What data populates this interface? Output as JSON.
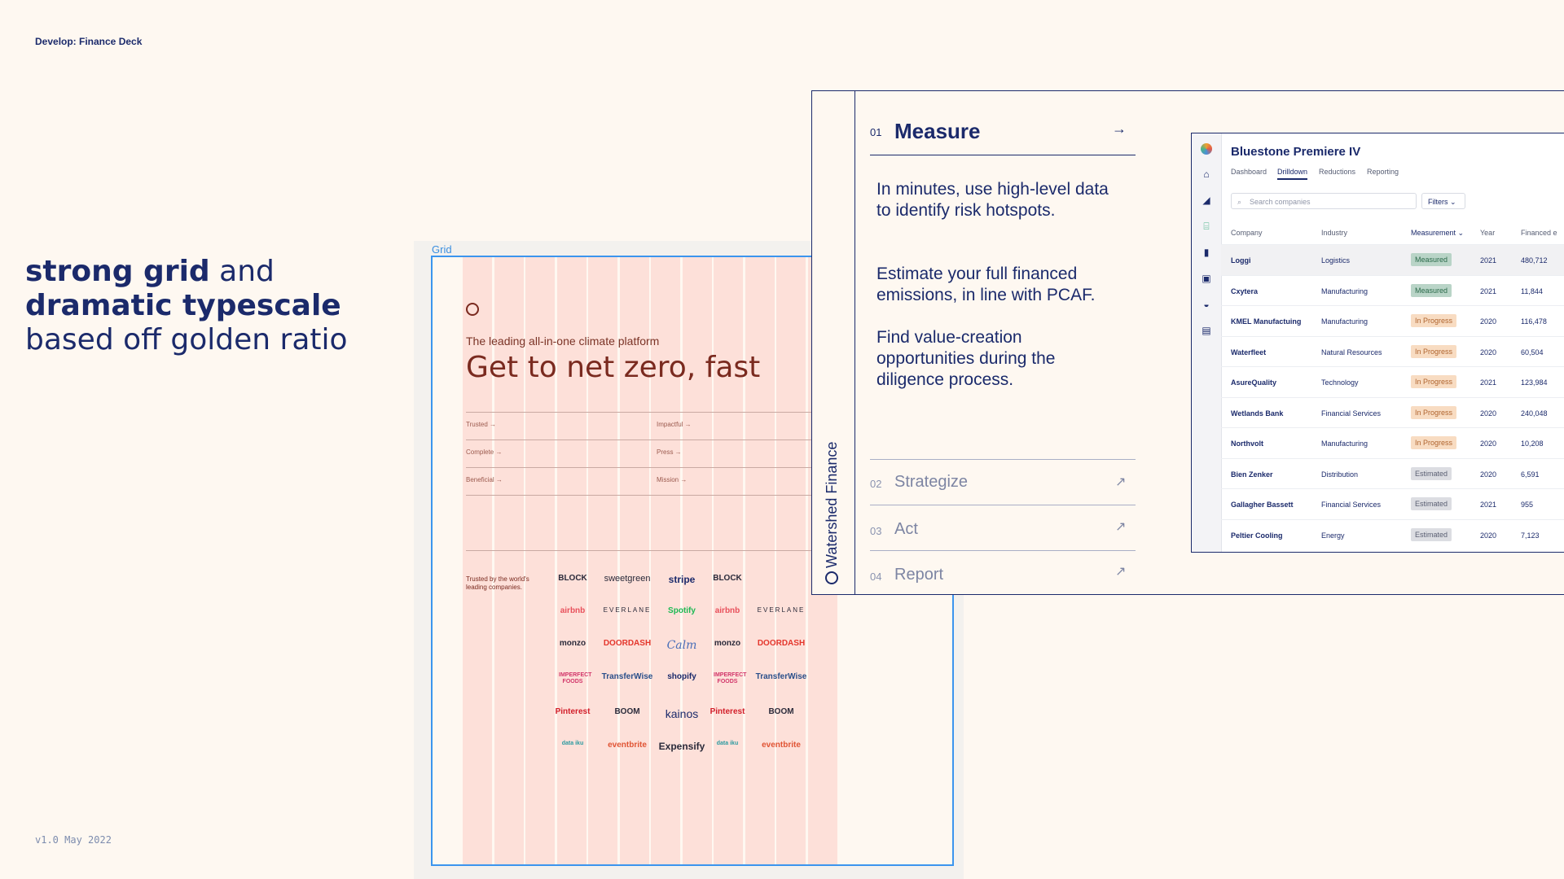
{
  "kicker": "Develop: Finance Deck",
  "version": "v1.0 May 2022",
  "headline": {
    "l1_bold": "strong grid",
    "l1_rest": " and",
    "l2_bold": "dramatic typescale",
    "l3": "based off golden ratio"
  },
  "grid_slide": {
    "label": "Grid",
    "subtitle": "The leading all-in-one climate platform",
    "title": "Get to net zero, fast",
    "links_left": [
      "Trusted →",
      "Complete →",
      "Beneficial →"
    ],
    "links_right": [
      "Impactful →",
      "Press →",
      "Mission →"
    ],
    "trusted_by": "Trusted by the world's leading companies.",
    "logos": [
      [
        "BLOCK",
        "sweetgreen",
        "stripe",
        "BLOCK"
      ],
      [
        "airbnb",
        "EVERLANE",
        "Spotify",
        "airbnb",
        "EVERLANE"
      ],
      [
        "monzo",
        "DOORDASH",
        "Calm",
        "monzo",
        "DOORDASH"
      ],
      [
        "IMPERFECT FOODS",
        "TransferWise",
        "shopify",
        "IMPERFECT FOODS",
        "TransferWise"
      ],
      [
        "Pinterest",
        "BOOM",
        "kainos",
        "Pinterest",
        "BOOM"
      ],
      [
        "data iku",
        "eventbrite",
        "Expensify",
        "data iku",
        "eventbrite"
      ]
    ]
  },
  "panel": {
    "brand": "Watershed Finance",
    "steps": [
      {
        "num": "01",
        "title": "Measure"
      },
      {
        "num": "02",
        "title": "Strategize"
      },
      {
        "num": "03",
        "title": "Act"
      },
      {
        "num": "04",
        "title": "Report"
      }
    ],
    "paragraphs": [
      "In minutes, use high-level data to identify risk hotspots.",
      "Estimate your full financed emissions, in line with PCAF.",
      "Find value-creation opportunities during the diligence process."
    ]
  },
  "app": {
    "title": "Bluestone Premiere IV",
    "tabs": [
      "Dashboard",
      "Drilldown",
      "Reductions",
      "Reporting"
    ],
    "active_tab": "Drilldown",
    "search_placeholder": "Search companies",
    "filters_label": "Filters",
    "columns": [
      "Company",
      "Industry",
      "Measurement",
      "Year",
      "Financed e"
    ],
    "rows": [
      {
        "company": "Loggi",
        "industry": "Logistics",
        "status": "Measured",
        "year": "2021",
        "value": "480,712"
      },
      {
        "company": "Cxytera",
        "industry": "Manufacturing",
        "status": "Measured",
        "year": "2021",
        "value": "11,844"
      },
      {
        "company": "KMEL Manufactuing",
        "industry": "Manufacturing",
        "status": "In Progress",
        "year": "2020",
        "value": "116,478"
      },
      {
        "company": "Waterfleet",
        "industry": "Natural Resources",
        "status": "In Progress",
        "year": "2020",
        "value": "60,504"
      },
      {
        "company": "AsureQuality",
        "industry": "Technology",
        "status": "In Progress",
        "year": "2021",
        "value": "123,984"
      },
      {
        "company": "Wetlands Bank",
        "industry": "Financial Services",
        "status": "In Progress",
        "year": "2020",
        "value": "240,048"
      },
      {
        "company": "Northvolt",
        "industry": "Manufacturing",
        "status": "In Progress",
        "year": "2020",
        "value": "10,208"
      },
      {
        "company": "Bien Zenker",
        "industry": "Distribution",
        "status": "Estimated",
        "year": "2020",
        "value": "6,591"
      },
      {
        "company": "Gallagher Bassett",
        "industry": "Financial Services",
        "status": "Estimated",
        "year": "2021",
        "value": "955"
      },
      {
        "company": "Peltier Cooling",
        "industry": "Energy",
        "status": "Estimated",
        "year": "2020",
        "value": "7,123"
      }
    ],
    "rail_icons": [
      "logo-icon",
      "home-icon",
      "chart-icon",
      "bank-icon",
      "bar-chart-icon",
      "terminal-icon",
      "basket-icon",
      "document-icon"
    ]
  },
  "colors": {
    "navy": "#1b2a6b",
    "cream": "#fef8f1",
    "grid_column": "#fde0d9",
    "grid_frame": "#3b95ee",
    "measured_bg": "#b9d4c7",
    "progress_bg": "#f8dcc2",
    "estimated_bg": "#dcdde2"
  }
}
